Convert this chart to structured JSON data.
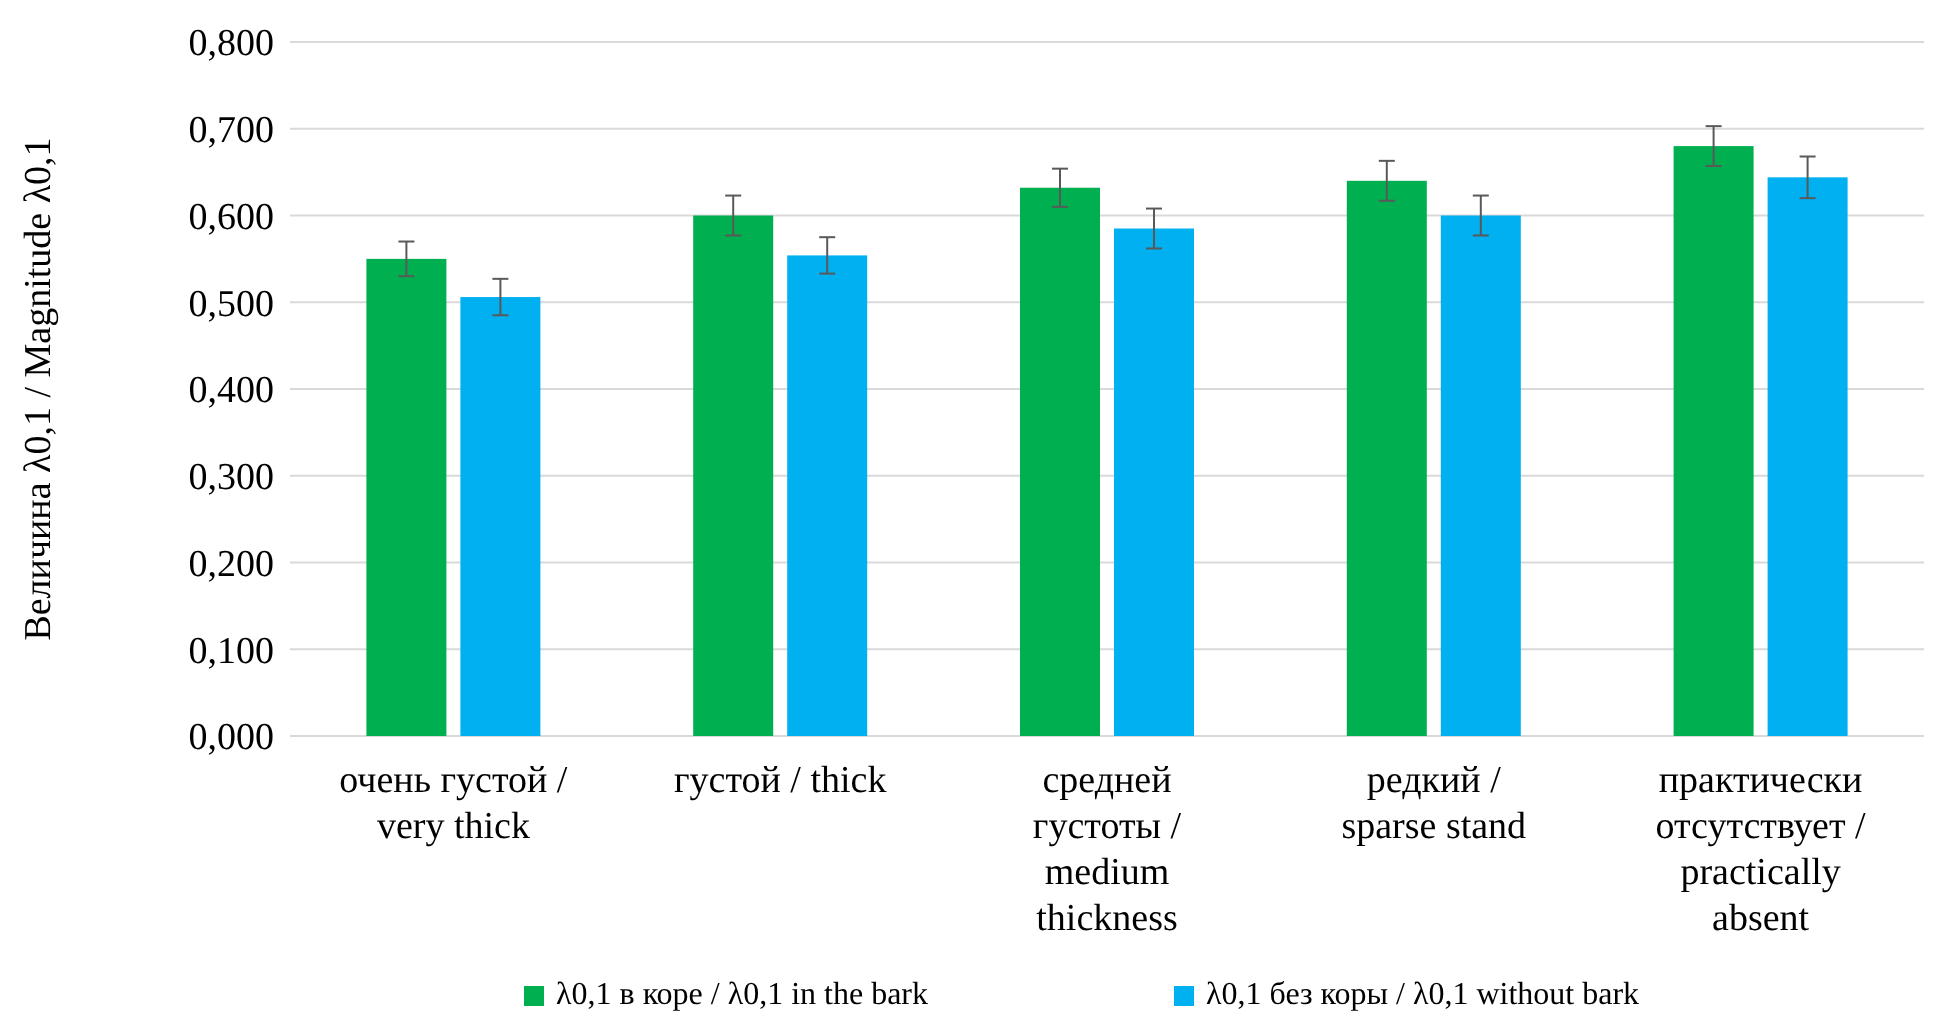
{
  "chart_data": {
    "type": "bar",
    "ylabel": "Величина λ0,1 / Magnitude λ0,1",
    "categories": [
      "очень густой / very thick",
      "густой / thick",
      "средней густоты / medium thickness",
      "редкий / sparse stand",
      "практически отсутствует / practically absent"
    ],
    "series": [
      {
        "name": "λ0,1 в коре / λ0,1 in the bark",
        "color": "#00b050",
        "values": [
          0.55,
          0.6,
          0.632,
          0.64,
          0.68
        ],
        "errors": [
          0.02,
          0.023,
          0.022,
          0.023,
          0.023
        ]
      },
      {
        "name": "λ0,1 без коры / λ0,1 without bark",
        "color": "#00b0f0",
        "values": [
          0.506,
          0.554,
          0.585,
          0.6,
          0.644
        ],
        "errors": [
          0.021,
          0.021,
          0.023,
          0.023,
          0.024
        ]
      }
    ],
    "ylim": [
      0,
      0.8
    ],
    "yticks": [
      {
        "value": 0,
        "label": "0,000"
      },
      {
        "value": 0.1,
        "label": "0,100"
      },
      {
        "value": 0.2,
        "label": "0,200"
      },
      {
        "value": 0.3,
        "label": "0,300"
      },
      {
        "value": 0.4,
        "label": "0,400"
      },
      {
        "value": 0.5,
        "label": "0,500"
      },
      {
        "value": 0.6,
        "label": "0,600"
      },
      {
        "value": 0.7,
        "label": "0,700"
      },
      {
        "value": 0.8,
        "label": "0,800"
      }
    ],
    "grid": "y",
    "legend": "bottom"
  }
}
